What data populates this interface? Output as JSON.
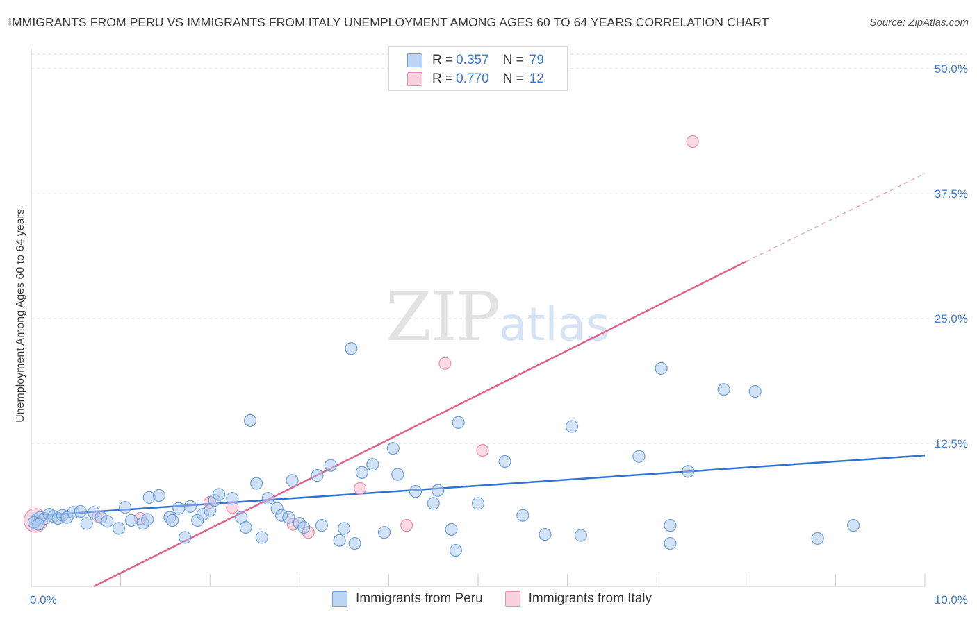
{
  "title": "IMMIGRANTS FROM PERU VS IMMIGRANTS FROM ITALY UNEMPLOYMENT AMONG AGES 60 TO 64 YEARS CORRELATION CHART",
  "source": "Source: ZipAtlas.com",
  "watermark": {
    "zip": "ZIP",
    "atlas": "atlas"
  },
  "legend": {
    "rows": [
      {
        "r_label": "R =",
        "r_value": "0.357",
        "n_label": "N =",
        "n_value": "79"
      },
      {
        "r_label": "R =",
        "r_value": "0.770",
        "n_label": "N =",
        "n_value": "12"
      }
    ]
  },
  "chart_data": {
    "type": "scatter",
    "title": "IMMIGRANTS FROM PERU VS IMMIGRANTS FROM ITALY UNEMPLOYMENT AMONG AGES 60 TO 64 YEARS CORRELATION CHART",
    "xlabel": "",
    "ylabel": "Unemployment Among Ages 60 to 64 years",
    "xlim": [
      0,
      10
    ],
    "ylim": [
      -1.8,
      52
    ],
    "x_tick_labels": [
      {
        "value": 0,
        "label": "0.0%"
      },
      {
        "value": 10,
        "label": "10.0%"
      }
    ],
    "y_tick_labels": [
      {
        "value": 12.5,
        "label": "12.5%"
      },
      {
        "value": 25,
        "label": "25.0%"
      },
      {
        "value": 37.5,
        "label": "37.5%"
      },
      {
        "value": 50,
        "label": "50.0%"
      }
    ],
    "x_minor_ticks": [
      1,
      2,
      3,
      4,
      5,
      6,
      7,
      8,
      9
    ],
    "series": [
      {
        "name": "Immigrants from Peru",
        "color": "#a8c8f0",
        "stroke": "#6f9fd8",
        "line_color": "#2f72d0",
        "trend": {
          "x0": 0.1,
          "y0": 5.3,
          "x1": 10.0,
          "y1": 11.3
        },
        "points": [
          [
            0.06,
            4.9
          ],
          [
            0.1,
            5.1
          ],
          [
            0.15,
            5.0
          ],
          [
            0.2,
            5.4
          ],
          [
            0.25,
            5.2
          ],
          [
            0.3,
            5.0
          ],
          [
            0.35,
            5.3
          ],
          [
            0.4,
            5.1
          ],
          [
            0.47,
            5.6
          ],
          [
            0.55,
            5.7
          ],
          [
            0.62,
            4.5
          ],
          [
            0.7,
            5.6
          ],
          [
            0.78,
            5.1
          ],
          [
            0.85,
            4.7
          ],
          [
            1.05,
            6.1
          ],
          [
            0.98,
            4.0
          ],
          [
            1.12,
            4.8
          ],
          [
            1.25,
            4.5
          ],
          [
            1.3,
            4.9
          ],
          [
            1.32,
            7.1
          ],
          [
            1.43,
            7.3
          ],
          [
            1.55,
            5.1
          ],
          [
            1.58,
            4.8
          ],
          [
            1.65,
            6.0
          ],
          [
            1.72,
            3.1
          ],
          [
            1.78,
            6.2
          ],
          [
            1.86,
            4.8
          ],
          [
            1.92,
            5.4
          ],
          [
            2.0,
            5.8
          ],
          [
            2.05,
            6.8
          ],
          [
            2.1,
            7.4
          ],
          [
            2.25,
            7.0
          ],
          [
            2.35,
            5.1
          ],
          [
            2.4,
            4.1
          ],
          [
            2.45,
            14.8
          ],
          [
            2.52,
            8.5
          ],
          [
            2.58,
            3.1
          ],
          [
            2.65,
            7.0
          ],
          [
            2.75,
            6.0
          ],
          [
            2.8,
            5.3
          ],
          [
            2.88,
            5.1
          ],
          [
            2.92,
            8.8
          ],
          [
            3.0,
            4.5
          ],
          [
            3.05,
            4.1
          ],
          [
            3.2,
            9.3
          ],
          [
            3.25,
            4.3
          ],
          [
            3.35,
            10.3
          ],
          [
            3.45,
            2.8
          ],
          [
            3.5,
            4.0
          ],
          [
            3.58,
            22.0
          ],
          [
            3.62,
            2.5
          ],
          [
            3.7,
            9.6
          ],
          [
            3.82,
            10.4
          ],
          [
            3.95,
            3.6
          ],
          [
            4.05,
            12.0
          ],
          [
            4.1,
            9.4
          ],
          [
            4.3,
            7.7
          ],
          [
            4.5,
            6.5
          ],
          [
            4.55,
            7.8
          ],
          [
            4.7,
            3.9
          ],
          [
            4.75,
            1.8
          ],
          [
            4.78,
            14.6
          ],
          [
            5.0,
            6.5
          ],
          [
            5.3,
            10.7
          ],
          [
            5.5,
            5.3
          ],
          [
            5.75,
            3.4
          ],
          [
            6.05,
            14.2
          ],
          [
            6.15,
            3.3
          ],
          [
            6.8,
            11.2
          ],
          [
            7.05,
            20.0
          ],
          [
            7.15,
            2.5
          ],
          [
            7.15,
            4.3
          ],
          [
            7.35,
            9.7
          ],
          [
            7.75,
            17.9
          ],
          [
            8.1,
            17.7
          ],
          [
            8.8,
            3.0
          ],
          [
            9.2,
            4.3
          ],
          [
            0.03,
            4.6
          ],
          [
            0.08,
            4.4
          ]
        ]
      },
      {
        "name": "Immigrants from Italy",
        "color": "#f7bcd0",
        "stroke": "#ea8fae",
        "line_color": "#e0608c",
        "trend": {
          "x0": 0.7,
          "y0": -1.8,
          "x1": 8.0,
          "y1": 30.7
        },
        "trend_dashed": {
          "x0": 8.0,
          "y0": 30.7,
          "x1": 10.0,
          "y1": 39.5
        },
        "points": [
          [
            0.05,
            4.8
          ],
          [
            0.75,
            5.2
          ],
          [
            1.22,
            5.0
          ],
          [
            2.0,
            6.6
          ],
          [
            2.25,
            6.1
          ],
          [
            2.93,
            4.4
          ],
          [
            3.1,
            3.6
          ],
          [
            3.68,
            8.0
          ],
          [
            4.2,
            4.3
          ],
          [
            4.63,
            20.5
          ],
          [
            5.05,
            11.8
          ],
          [
            7.4,
            42.7
          ]
        ]
      }
    ]
  }
}
